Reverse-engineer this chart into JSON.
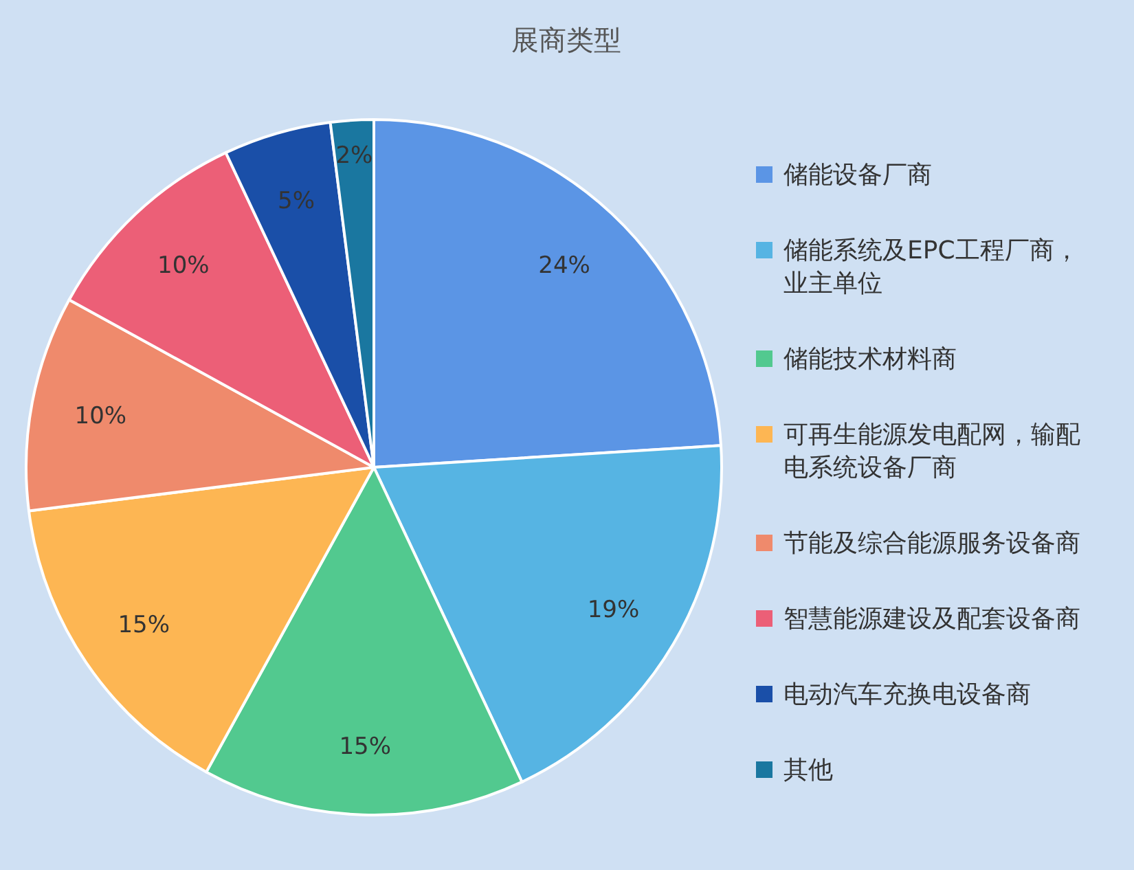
{
  "chart_data": {
    "type": "pie",
    "title": "展商类型",
    "categories": [
      "储能设备厂商",
      "储能系统及EPC工程厂商，业主单位",
      "储能技术材料商",
      "可再生能源发电配网，输配电系统设备厂商",
      "节能及综合能源服务设备商",
      "智慧能源建设及配套设备商",
      "电动汽车充换电设备商",
      "其他"
    ],
    "values": [
      24,
      19,
      15,
      15,
      10,
      10,
      5,
      2
    ],
    "value_labels": [
      "24%",
      "19%",
      "15%",
      "15%",
      "10%",
      "10%",
      "5%",
      "2%"
    ],
    "colors": [
      "#5b95e5",
      "#56b4e3",
      "#52c98f",
      "#fdb653",
      "#ef8a6c",
      "#ec5f77",
      "#1a4fa8",
      "#1a77a0"
    ],
    "legend": "right"
  }
}
